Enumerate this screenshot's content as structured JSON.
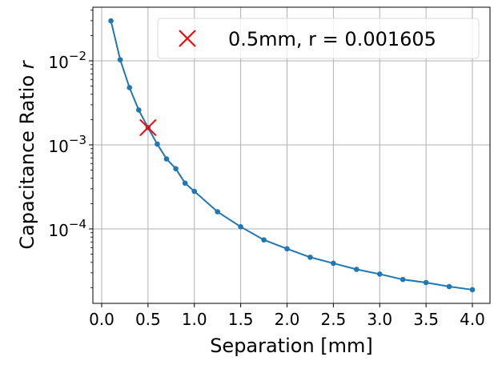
{
  "chart_data": {
    "type": "line",
    "title": "",
    "xlabel": "Separation [mm]",
    "ylabel": "Capacitance Ratio",
    "ylabel_italic_symbol": "r",
    "yscale": "log",
    "xlim": [
      -0.095,
      4.19
    ],
    "ylim": [
      4.35e-05,
      0.0435
    ],
    "ylim_log10": [
      -4.886,
      -1.362
    ],
    "grid": true,
    "x_ticks": [
      0.0,
      0.5,
      1.0,
      1.5,
      2.0,
      2.5,
      3.0,
      3.5,
      4.0
    ],
    "x_tick_labels": [
      "0.0",
      "0.5",
      "1.0",
      "1.5",
      "2.0",
      "2.5",
      "3.0",
      "3.5",
      "4.0"
    ],
    "y_ticks_log10": [
      -2,
      -3,
      -4
    ],
    "y_tick_labels": [
      {
        "base": "10",
        "exp": "−2"
      },
      {
        "base": "10",
        "exp": "−3"
      },
      {
        "base": "10",
        "exp": "−4"
      }
    ],
    "series": [
      {
        "name": "capacitance ratio",
        "color": "#1f77b4",
        "marker": "circle",
        "x": [
          0.1,
          0.2,
          0.3,
          0.4,
          0.5,
          0.6,
          0.7,
          0.8,
          0.9,
          1.0,
          1.25,
          1.5,
          1.75,
          2.0,
          2.25,
          2.5,
          2.75,
          3.0,
          3.25,
          3.5,
          3.75,
          4.0
        ],
        "values": [
          0.0299,
          0.0103,
          0.0048,
          0.0026,
          0.001605,
          0.00102,
          0.00068,
          0.00052,
          0.00035,
          0.00028,
          0.00016,
          0.000106,
          7.4e-05,
          5.8e-05,
          4.6e-05,
          3.9e-05,
          3.3e-05,
          2.9e-05,
          2.5e-05,
          2.3e-05,
          2.06e-05,
          1.89e-05
        ]
      },
      {
        "name": "0.5mm, r = 0.001605",
        "color": "#ff0000",
        "marker": "x",
        "x": [
          0.5
        ],
        "values": [
          0.001605
        ]
      }
    ],
    "legend": {
      "position": "upper right",
      "entries": [
        {
          "label": "0.5mm, r = 0.001605",
          "marker": "x",
          "color": "#ff0000"
        }
      ]
    }
  },
  "colors": {
    "line": "#1f77b4",
    "highlight": "#ff0000",
    "grid": "#b0b0b0",
    "axes": "#000000"
  }
}
